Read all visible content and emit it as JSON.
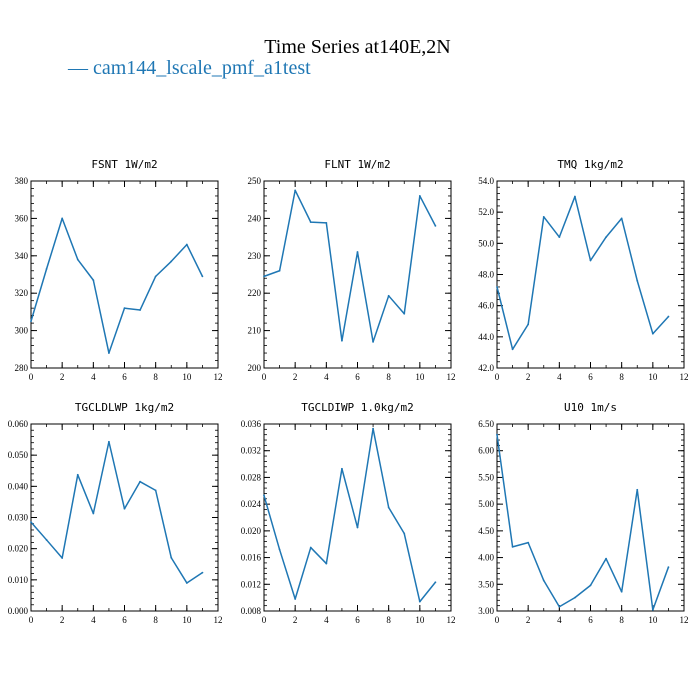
{
  "title": "Time Series at140E,2N",
  "legend": {
    "label": "cam144_lscale_pmf_a1test",
    "dash": "—",
    "color": "#1f77b4"
  },
  "chart_data": [
    {
      "type": "line",
      "title": "FSNT   1W/m2",
      "x": [
        0,
        1,
        2,
        3,
        4,
        5,
        6,
        7,
        8,
        9,
        10,
        11
      ],
      "series": [
        {
          "values": [
            305,
            333,
            360,
            338,
            327,
            288,
            312,
            311,
            329,
            337,
            346,
            329
          ]
        }
      ],
      "xlim": [
        0,
        12
      ],
      "ylim": [
        280,
        380
      ],
      "xticks": [
        0,
        2,
        4,
        6,
        8,
        10,
        12
      ],
      "xtick_labels": [
        "0",
        "2",
        "4",
        "6",
        "8",
        "10",
        "12"
      ],
      "yticks": [
        280,
        300,
        320,
        340,
        360,
        380
      ],
      "ytick_labels": [
        "280",
        "300",
        "320",
        "340",
        "360",
        "380"
      ]
    },
    {
      "type": "line",
      "title": "FLNT   1W/m2",
      "x": [
        0,
        1,
        2,
        3,
        4,
        5,
        6,
        7,
        8,
        9,
        10,
        11
      ],
      "series": [
        {
          "values": [
            224.5,
            226,
            247.5,
            239,
            238.8,
            207.3,
            231,
            207,
            219.3,
            214.5,
            246,
            238
          ]
        }
      ],
      "xlim": [
        0,
        12
      ],
      "ylim": [
        200,
        250
      ],
      "xticks": [
        0,
        2,
        4,
        6,
        8,
        10,
        12
      ],
      "xtick_labels": [
        "0",
        "2",
        "4",
        "6",
        "8",
        "10",
        "12"
      ],
      "yticks": [
        200,
        210,
        220,
        230,
        240,
        250
      ],
      "ytick_labels": [
        "200",
        "210",
        "220",
        "230",
        "240",
        "250"
      ]
    },
    {
      "type": "line",
      "title": "TMQ   1kg/m2",
      "x": [
        0,
        1,
        2,
        3,
        4,
        5,
        6,
        7,
        8,
        9,
        10,
        11
      ],
      "series": [
        {
          "values": [
            47.2,
            43.2,
            44.8,
            51.7,
            50.4,
            53.0,
            48.9,
            50.4,
            51.6,
            47.6,
            44.2,
            45.3
          ]
        }
      ],
      "xlim": [
        0,
        12
      ],
      "ylim": [
        42,
        54
      ],
      "xticks": [
        0,
        2,
        4,
        6,
        8,
        10,
        12
      ],
      "xtick_labels": [
        "0",
        "2",
        "4",
        "6",
        "8",
        "10",
        "12"
      ],
      "yticks": [
        42,
        44,
        46,
        48,
        50,
        52,
        54
      ],
      "ytick_labels": [
        "42.0",
        "44.0",
        "46.0",
        "48.0",
        "50.0",
        "52.0",
        "54.0"
      ]
    },
    {
      "type": "line",
      "title": "TGCLDLWP   1kg/m2",
      "x": [
        0,
        1,
        2,
        3,
        4,
        5,
        6,
        7,
        8,
        9,
        10,
        11
      ],
      "series": [
        {
          "values": [
            0.0285,
            0.0228,
            0.017,
            0.0437,
            0.0313,
            0.0543,
            0.0328,
            0.0415,
            0.0387,
            0.0171,
            0.009,
            0.0123
          ]
        }
      ],
      "xlim": [
        0,
        12
      ],
      "ylim": [
        0,
        0.06
      ],
      "xticks": [
        0,
        2,
        4,
        6,
        8,
        10,
        12
      ],
      "xtick_labels": [
        "0",
        "2",
        "4",
        "6",
        "8",
        "10",
        "12"
      ],
      "yticks": [
        0,
        0.01,
        0.02,
        0.03,
        0.04,
        0.05,
        0.06
      ],
      "ytick_labels": [
        "0.000",
        "0.010",
        "0.020",
        "0.030",
        "0.040",
        "0.050",
        "0.060"
      ]
    },
    {
      "type": "line",
      "title": "TGCLDIWP   1.0kg/m2",
      "x": [
        0,
        1,
        2,
        3,
        4,
        5,
        6,
        7,
        8,
        9,
        10,
        11
      ],
      "series": [
        {
          "values": [
            0.0253,
            0.0172,
            0.0098,
            0.0175,
            0.0151,
            0.0293,
            0.0205,
            0.0353,
            0.0235,
            0.0196,
            0.0094,
            0.0123
          ]
        }
      ],
      "xlim": [
        0,
        12
      ],
      "ylim": [
        0.008,
        0.036
      ],
      "xticks": [
        0,
        2,
        4,
        6,
        8,
        10,
        12
      ],
      "xtick_labels": [
        "0",
        "2",
        "4",
        "6",
        "8",
        "10",
        "12"
      ],
      "yticks": [
        0.008,
        0.012,
        0.016,
        0.02,
        0.024,
        0.028,
        0.032,
        0.036
      ],
      "ytick_labels": [
        "0.008",
        "0.012",
        "0.016",
        "0.020",
        "0.024",
        "0.028",
        "0.032",
        "0.036"
      ]
    },
    {
      "type": "line",
      "title": "U10   1m/s",
      "x": [
        0,
        1,
        2,
        3,
        4,
        5,
        6,
        7,
        8,
        9,
        10,
        11
      ],
      "series": [
        {
          "values": [
            6.3,
            4.2,
            4.28,
            3.57,
            3.08,
            3.25,
            3.48,
            3.98,
            3.36,
            5.27,
            3.02,
            3.82
          ]
        }
      ],
      "xlim": [
        0,
        12
      ],
      "ylim": [
        3,
        6.5
      ],
      "xticks": [
        0,
        2,
        4,
        6,
        8,
        10,
        12
      ],
      "xtick_labels": [
        "0",
        "2",
        "4",
        "6",
        "8",
        "10",
        "12"
      ],
      "yticks": [
        3,
        3.5,
        4,
        4.5,
        5,
        5.5,
        6,
        6.5
      ],
      "ytick_labels": [
        "3.00",
        "3.50",
        "4.00",
        "4.50",
        "5.00",
        "5.50",
        "6.00",
        "6.50"
      ]
    }
  ],
  "style": {
    "line_color": "#1f77b4",
    "axis_color": "#000000"
  }
}
